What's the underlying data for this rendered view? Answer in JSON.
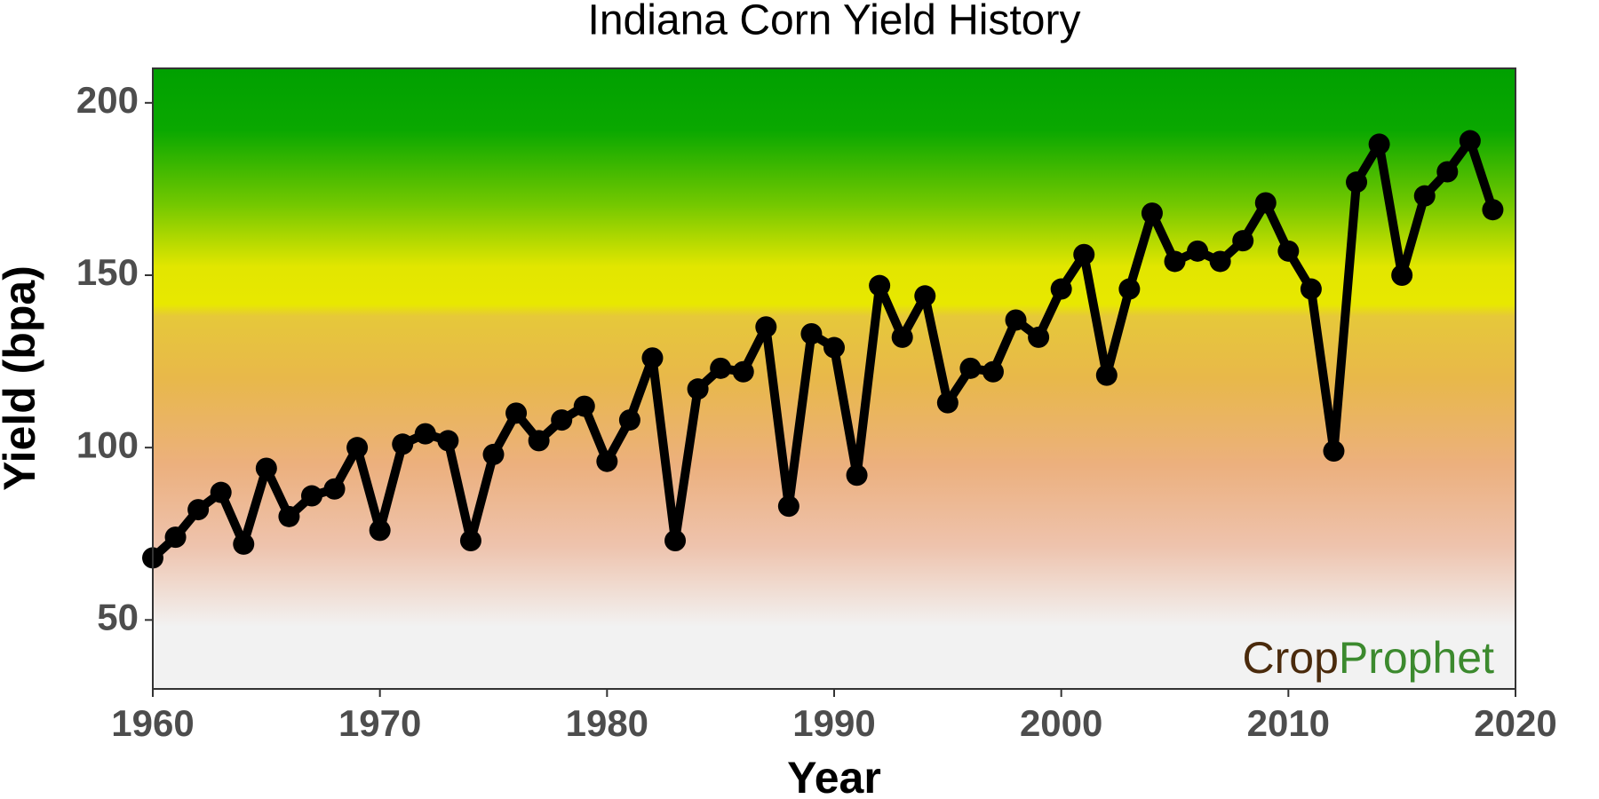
{
  "chart_data": {
    "type": "line",
    "title": "Indiana Corn Yield History",
    "x_label": "Year",
    "y_label": "Yield (bpa)",
    "x": [
      1960,
      1961,
      1962,
      1963,
      1964,
      1965,
      1966,
      1967,
      1968,
      1969,
      1970,
      1971,
      1972,
      1973,
      1974,
      1975,
      1976,
      1977,
      1978,
      1979,
      1980,
      1981,
      1982,
      1983,
      1984,
      1985,
      1986,
      1987,
      1988,
      1989,
      1990,
      1991,
      1992,
      1993,
      1994,
      1995,
      1996,
      1997,
      1998,
      1999,
      2000,
      2001,
      2002,
      2003,
      2004,
      2005,
      2006,
      2007,
      2008,
      2009,
      2010,
      2011,
      2012,
      2013,
      2014,
      2015,
      2016,
      2017,
      2018,
      2019
    ],
    "values": [
      68,
      74,
      82,
      87,
      72,
      94,
      80,
      86,
      88,
      100,
      76,
      101,
      104,
      102,
      73,
      98,
      110,
      102,
      108,
      112,
      96,
      108,
      126,
      73,
      117,
      123,
      122,
      135,
      83,
      133,
      129,
      92,
      147,
      132,
      144,
      113,
      123,
      122,
      137,
      132,
      146,
      156,
      121,
      146,
      168,
      154,
      157,
      154,
      160,
      171,
      157,
      146,
      99,
      177,
      188,
      150,
      173,
      180,
      189,
      169
    ],
    "color": "#000000",
    "xlim": [
      1960,
      2020
    ],
    "xticks": [
      1960,
      1970,
      1980,
      1990,
      2000,
      2010,
      2020
    ],
    "ylim": [
      30,
      210
    ],
    "yticks": [
      50,
      100,
      150,
      200
    ],
    "grid": false,
    "logo": {
      "first": "Crop",
      "second": "Prophet"
    }
  }
}
